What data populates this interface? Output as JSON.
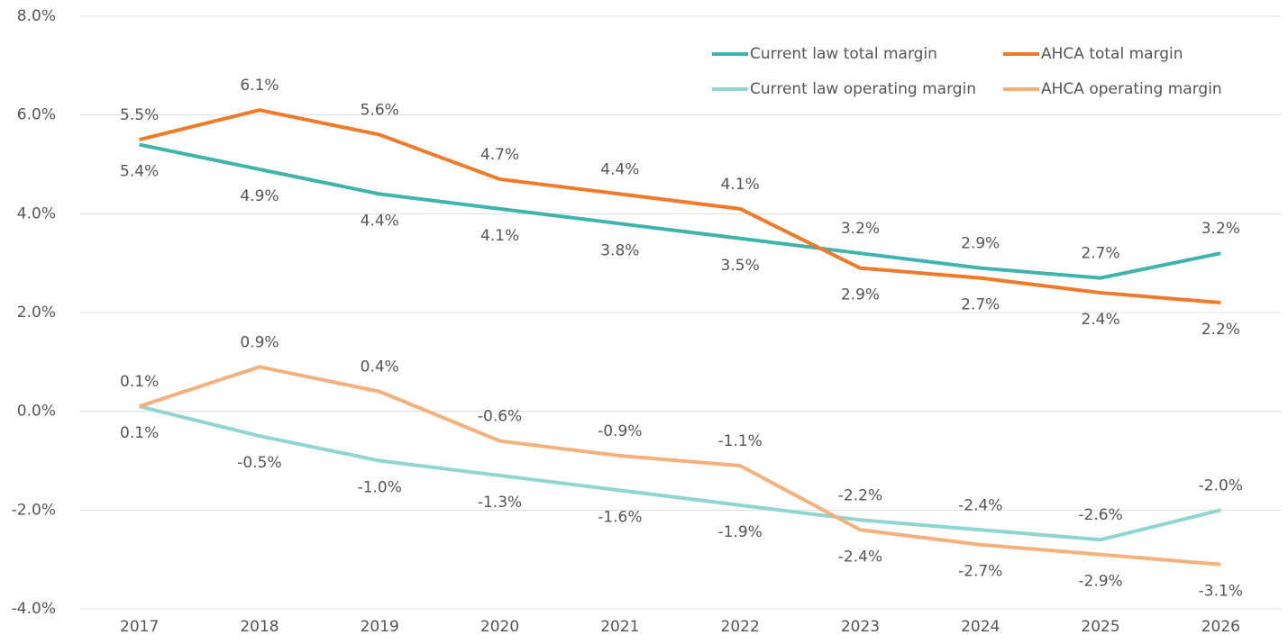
{
  "chart_data": {
    "type": "line",
    "categories": [
      "2017",
      "2018",
      "2019",
      "2020",
      "2021",
      "2022",
      "2023",
      "2024",
      "2025",
      "2026"
    ],
    "series": [
      {
        "name": "Current law total margin",
        "color": "#3fb4ad",
        "values": [
          5.4,
          4.9,
          4.4,
          4.1,
          3.8,
          3.5,
          3.2,
          2.9,
          2.7,
          3.2
        ],
        "value_labels": [
          "5.4%",
          "4.9%",
          "4.4%",
          "4.1%",
          "3.8%",
          "3.5%",
          "3.2%",
          "2.9%",
          "2.7%",
          "3.2%"
        ]
      },
      {
        "name": "AHCA total margin",
        "color": "#ef7b2a",
        "values": [
          5.5,
          6.1,
          5.6,
          4.7,
          4.4,
          4.1,
          2.9,
          2.7,
          2.4,
          2.2
        ],
        "value_labels": [
          "5.5%",
          "6.1%",
          "5.6%",
          "4.7%",
          "4.4%",
          "4.1%",
          "2.9%",
          "2.7%",
          "2.4%",
          "2.2%"
        ]
      },
      {
        "name": "Current law operating margin",
        "color": "#8fd5d2",
        "values": [
          0.1,
          -0.5,
          -1.0,
          -1.3,
          -1.6,
          -1.9,
          -2.2,
          -2.4,
          -2.6,
          -2.0
        ],
        "value_labels": [
          "0.1%",
          "-0.5%",
          "-1.0%",
          "-1.3%",
          "-1.6%",
          "-1.9%",
          "-2.2%",
          "-2.4%",
          "-2.6%",
          "-2.0%"
        ]
      },
      {
        "name": "AHCA operating margin",
        "color": "#f5b07c",
        "values": [
          0.1,
          0.9,
          0.4,
          -0.6,
          -0.9,
          -1.1,
          -2.4,
          -2.7,
          -2.9,
          -3.1
        ],
        "value_labels": [
          "0.1%",
          "0.9%",
          "0.4%",
          "-0.6%",
          "-0.9%",
          "-1.1%",
          "-2.4%",
          "-2.7%",
          "-2.9%",
          "-3.1%"
        ]
      }
    ],
    "ylim": [
      -4,
      8
    ],
    "yticks": [
      {
        "value": -4,
        "label": "-4.0%"
      },
      {
        "value": -2,
        "label": "-2.0%"
      },
      {
        "value": 0,
        "label": "0.0%"
      },
      {
        "value": 2,
        "label": "2.0%"
      },
      {
        "value": 4,
        "label": "4.0%"
      },
      {
        "value": 6,
        "label": "6.0%"
      },
      {
        "value": 8,
        "label": "8.0%"
      }
    ],
    "grid": true
  }
}
